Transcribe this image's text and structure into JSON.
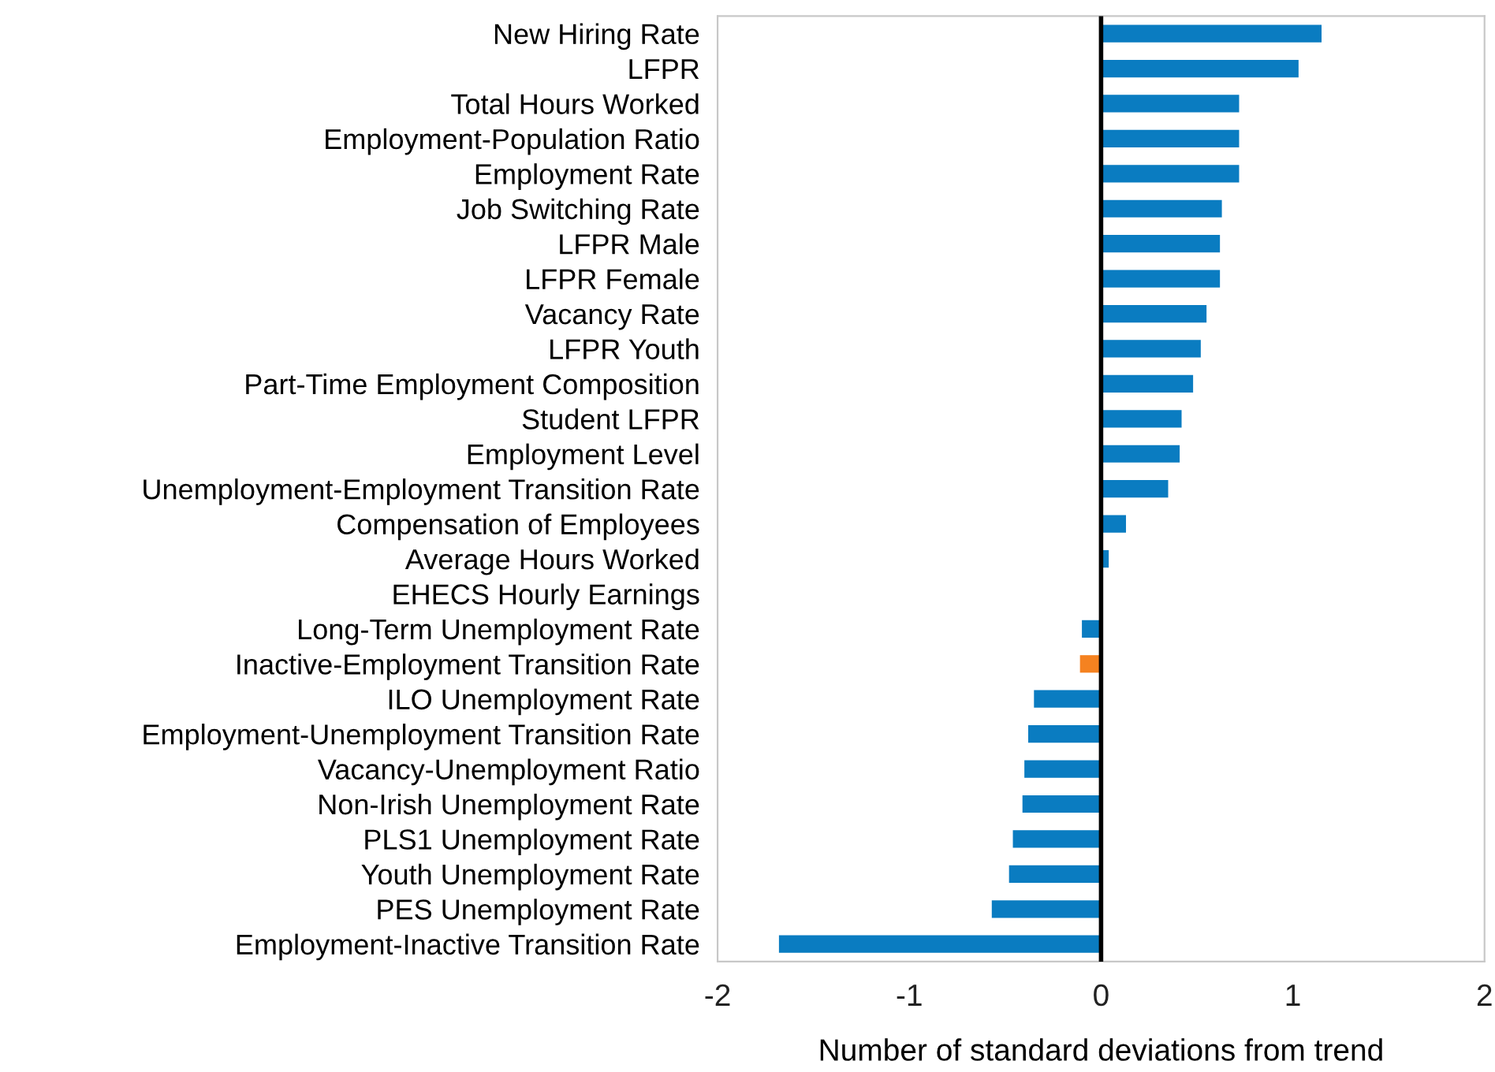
{
  "chart_data": {
    "type": "bar",
    "orientation": "horizontal",
    "xlabel": "Number of standard deviations from trend",
    "categories": [
      "New Hiring Rate",
      "LFPR",
      "Total Hours Worked",
      "Employment-Population Ratio",
      "Employment Rate",
      "Job Switching Rate",
      "LFPR Male",
      "LFPR Female",
      "Vacancy Rate",
      "LFPR Youth",
      "Part-Time Employment Composition",
      "Student LFPR",
      "Employment Level",
      "Unemployment-Employment Transition Rate",
      "Compensation of Employees",
      "Average Hours Worked",
      "EHECS Hourly Earnings",
      "Long-Term Unemployment Rate",
      "Inactive-Employment Transition Rate",
      "ILO Unemployment Rate",
      "Employment-Unemployment Transition Rate",
      "Vacancy-Unemployment Ratio",
      "Non-Irish Unemployment Rate",
      "PLS1 Unemployment Rate",
      "Youth Unemployment Rate",
      "PES Unemployment Rate",
      "Employment-Inactive Transition Rate"
    ],
    "values": [
      1.15,
      1.03,
      0.72,
      0.72,
      0.72,
      0.63,
      0.62,
      0.62,
      0.55,
      0.52,
      0.48,
      0.42,
      0.41,
      0.35,
      0.13,
      0.04,
      0,
      -0.1,
      -0.11,
      -0.35,
      -0.38,
      -0.4,
      -0.41,
      -0.46,
      -0.48,
      -0.57,
      -1.68
    ],
    "colors": [
      "#0a7cc1",
      "#0a7cc1",
      "#0a7cc1",
      "#0a7cc1",
      "#0a7cc1",
      "#0a7cc1",
      "#0a7cc1",
      "#0a7cc1",
      "#0a7cc1",
      "#0a7cc1",
      "#0a7cc1",
      "#0a7cc1",
      "#0a7cc1",
      "#0a7cc1",
      "#0a7cc1",
      "#0a7cc1",
      "#0a7cc1",
      "#0a7cc1",
      "#f58220",
      "#0a7cc1",
      "#0a7cc1",
      "#0a7cc1",
      "#0a7cc1",
      "#0a7cc1",
      "#0a7cc1",
      "#0a7cc1",
      "#0a7cc1"
    ],
    "xlim": [
      -2,
      2
    ],
    "xticks": [
      -2,
      -1,
      0,
      1,
      2
    ],
    "grid": false,
    "legend": false,
    "ref_lines": [
      {
        "axis": "x",
        "value": 0,
        "label": null,
        "color": "#000000"
      }
    ]
  }
}
